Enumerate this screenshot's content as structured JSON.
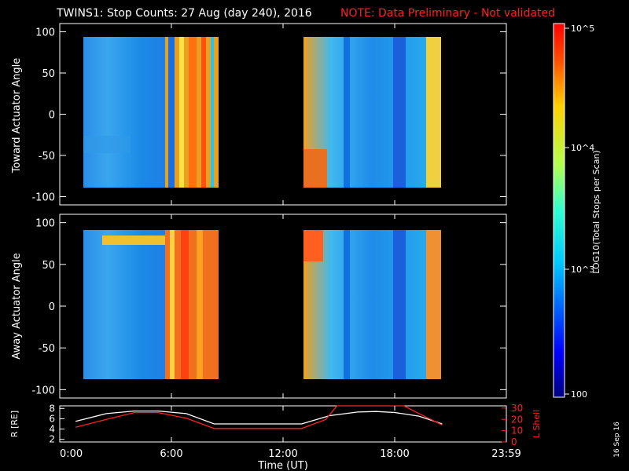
{
  "title": {
    "main": "TWINS1: Stop Counts: 27 Aug (day 240), 2016",
    "note": "NOTE: Data Preliminary - Not validated"
  },
  "date_stamp": "16 Sep 16",
  "colors": {
    "background": "#000000",
    "axes": "#ffffff",
    "note": "#ff2020",
    "orbit_r": "#ffffff",
    "orbit_lshell": "#ff2020"
  },
  "chart_data": [
    {
      "type": "heatmap",
      "ylabel": "Toward Actuator Angle",
      "ylim": [
        -110,
        110
      ],
      "yticks": [
        -100,
        -50,
        0,
        50,
        100
      ],
      "xlim": [
        0,
        24
      ],
      "data_blocks_hours": [
        [
          0.85,
          8.3
        ],
        [
          13.0,
          20.55
        ]
      ],
      "angle_range": [
        -88,
        90
      ]
    },
    {
      "type": "heatmap",
      "ylabel": "Away Actuator Angle",
      "ylim": [
        -110,
        110
      ],
      "yticks": [
        -100,
        -50,
        0,
        50,
        100
      ],
      "xlim": [
        0,
        24
      ],
      "data_blocks_hours": [
        [
          0.85,
          8.3
        ],
        [
          13.0,
          20.55
        ]
      ],
      "angle_range": [
        -88,
        90
      ]
    },
    {
      "type": "line",
      "ylabel_left": "R [RE]",
      "ylabel_right": "L Shell",
      "ylim_left": [
        1.5,
        8.5
      ],
      "yticks_left": [
        2,
        4,
        6,
        8
      ],
      "ylim_right": [
        0,
        32
      ],
      "yticks_right": [
        0,
        10,
        20,
        30
      ],
      "xlabel": "Time (UT)",
      "xticks": [
        "0:00",
        "6:00",
        "12:00",
        "18:00",
        "23:59"
      ],
      "xlim": [
        0,
        24
      ],
      "series": [
        {
          "name": "R",
          "axis": "left",
          "x": [
            0.85,
            2.5,
            4.0,
            5.3,
            6.8,
            8.3,
            10.0,
            13.0,
            14.5,
            16.0,
            17.0,
            18.0,
            19.3,
            20.55
          ],
          "y": [
            5.5,
            7.0,
            7.5,
            7.5,
            7.0,
            5.0,
            5.0,
            5.0,
            6.6,
            7.3,
            7.4,
            7.2,
            6.5,
            5.0
          ]
        },
        {
          "name": "L Shell",
          "axis": "right",
          "x": [
            0.85,
            2.5,
            4.0,
            5.3,
            6.8,
            8.3,
            10.0,
            13.0,
            14.3,
            14.9,
            18.5,
            19.2,
            20.55
          ],
          "y": [
            13,
            20,
            26,
            26,
            21,
            12,
            12,
            12,
            20,
            32,
            32,
            26,
            15
          ]
        }
      ]
    }
  ],
  "colorbar": {
    "label": "LOG10(Total Stops per Scan)",
    "range": [
      100,
      100000
    ],
    "ticks": [
      "10^5",
      "10^4",
      "10^3",
      "100"
    ]
  }
}
